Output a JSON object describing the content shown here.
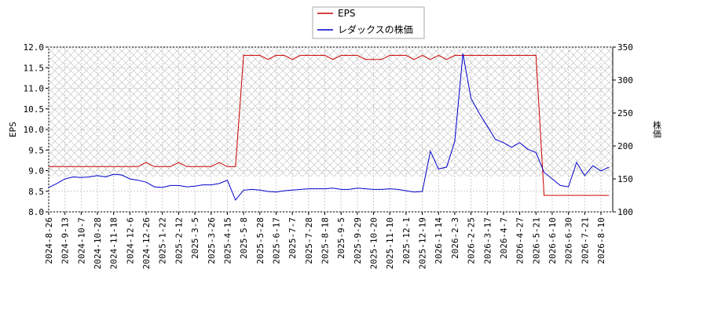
{
  "chart_data": {
    "type": "line",
    "legend": "upper center",
    "grid": true,
    "y_label": "EPS",
    "y2_label": "株価",
    "categories": [
      "2024-8-26",
      null,
      "2024-9-13",
      null,
      "2024-10-7",
      null,
      "2024-10-28",
      null,
      "2024-11-18",
      null,
      "2024-12-6",
      null,
      "2024-12-26",
      null,
      "2025-1-22",
      null,
      "2025-2-12",
      null,
      "2025-3-5",
      null,
      "2025-3-26",
      null,
      "2025-4-15",
      null,
      "2025-5-8",
      null,
      "2025-5-28",
      null,
      "2025-6-17",
      null,
      "2025-7-7",
      null,
      "2025-7-28",
      null,
      "2025-8-18",
      null,
      "2025-9-5",
      null,
      "2025-9-29",
      null,
      "2025-10-20",
      null,
      "2025-11-10",
      null,
      "2025-12-1",
      null,
      "2025-12-19",
      null,
      "2026-1-14",
      null,
      "2026-2-3",
      null,
      "2026-2-25",
      null,
      "2026-3-17",
      null,
      "2026-4-7",
      null,
      "2026-4-27",
      null,
      "2026-5-21",
      null,
      "2026-6-10",
      null,
      "2026-6-30",
      null,
      "2026-7-21",
      null,
      "2026-8-10",
      null
    ],
    "series": [
      {
        "name": "EPS",
        "color": "#cc0000",
        "axis": "y",
        "values": [
          9.1,
          9.1,
          9.1,
          9.1,
          9.1,
          9.1,
          9.1,
          9.1,
          9.1,
          9.1,
          9.1,
          9.1,
          9.2,
          9.1,
          9.1,
          9.1,
          9.2,
          9.1,
          9.1,
          9.1,
          9.1,
          9.2,
          9.1,
          9.1,
          11.8,
          11.8,
          11.8,
          11.7,
          11.8,
          11.8,
          11.7,
          11.8,
          11.8,
          11.8,
          11.8,
          11.7,
          11.8,
          11.8,
          11.8,
          11.7,
          11.7,
          11.7,
          11.8,
          11.8,
          11.8,
          11.7,
          11.8,
          11.7,
          11.8,
          11.7,
          11.8,
          11.8,
          11.8,
          11.8,
          11.8,
          11.8,
          11.8,
          11.8,
          11.8,
          11.8,
          11.8,
          8.4,
          8.4,
          8.4,
          8.4,
          8.4,
          8.4,
          8.4,
          8.4,
          8.4
        ]
      },
      {
        "name": "レダックスの株価",
        "color": "#0000cc",
        "axis": "y2",
        "values": [
          137,
          143,
          150,
          153,
          152,
          153,
          155,
          153,
          157,
          156,
          150,
          148,
          145,
          138,
          137,
          140,
          140,
          138,
          139,
          141,
          141,
          143,
          148,
          118,
          133,
          134,
          133,
          131,
          130,
          132,
          133,
          134,
          135,
          135,
          135,
          136,
          134,
          134,
          136,
          135,
          134,
          134,
          135,
          134,
          132,
          130,
          131,
          192,
          165,
          168,
          207,
          340,
          272,
          250,
          230,
          210,
          205,
          198,
          205,
          195,
          190,
          160,
          150,
          140,
          138,
          175,
          155,
          170,
          162,
          168
        ]
      }
    ],
    "ylim": [
      8,
      12
    ],
    "yticks": [
      {
        "value": 8,
        "label": "8.0"
      },
      8.5,
      {
        "value": 9,
        "label": "9.0"
      },
      9.5,
      {
        "value": 10,
        "label": "10.0"
      },
      10.5,
      {
        "value": 11,
        "label": "11.0"
      },
      11.5,
      {
        "value": 12,
        "label": "12.0"
      }
    ],
    "y2lim": [
      100,
      350
    ],
    "y2ticks": [
      100,
      150,
      200,
      250,
      300,
      350
    ]
  }
}
